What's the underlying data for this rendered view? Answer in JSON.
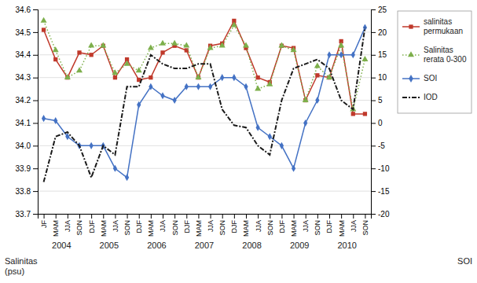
{
  "chart_data": {
    "type": "line",
    "categories": [
      "JF",
      "MAM",
      "JJA",
      "SON",
      "DJF",
      "MAM",
      "JJA",
      "SON",
      "DJF",
      "MAM",
      "JJA",
      "SON",
      "DJF",
      "MAM",
      "JJA",
      "SON",
      "DJF",
      "MAM",
      "JJA",
      "SON",
      "DJF",
      "MAM",
      "JJA",
      "SON",
      "DJF",
      "MAM",
      "JJA",
      "SON"
    ],
    "series": [
      {
        "name": "salinitas\npermukaan",
        "color": "#c0392b",
        "marker": "square",
        "line_style": "solid",
        "values": [
          34.51,
          34.38,
          34.3,
          34.41,
          34.4,
          34.44,
          34.3,
          34.38,
          34.29,
          34.3,
          34.41,
          34.44,
          34.42,
          34.3,
          34.44,
          34.45,
          34.55,
          34.43,
          34.3,
          34.28,
          34.44,
          34.43,
          34.2,
          34.31,
          34.3,
          34.46,
          34.14,
          34.14
        ]
      },
      {
        "name": "Salinitas\nrerata 0-300",
        "color": "#7daf4b",
        "marker": "triangle",
        "line_style": "dotted",
        "values": [
          34.55,
          34.42,
          34.3,
          34.33,
          34.44,
          34.44,
          34.32,
          34.36,
          34.33,
          34.43,
          34.45,
          34.45,
          34.44,
          34.3,
          34.43,
          34.44,
          34.53,
          34.44,
          34.25,
          34.27,
          34.44,
          34.42,
          34.2,
          34.35,
          34.3,
          34.44,
          34.16,
          34.38
        ]
      },
      {
        "name": "SOI",
        "color": "#4472c4",
        "marker": "diamond",
        "line_style": "solid",
        "axis": "y2",
        "values": [
          1.0,
          0.5,
          -3.0,
          -5.0,
          -5.0,
          -5.0,
          -10.0,
          -12.0,
          4.0,
          8.0,
          6.0,
          5.0,
          8.0,
          8.0,
          8.0,
          10.0,
          10.0,
          8.0,
          -1.0,
          -3.0,
          -5.0,
          -10.0,
          0.0,
          5.0,
          15.0,
          15.0,
          15.0,
          21.0
        ]
      },
      {
        "name": "IOD",
        "color": "#1a1a1a",
        "line_style": "dashdot",
        "axis": "y2",
        "values": [
          -13.0,
          -3.0,
          -2.0,
          -5.0,
          -12.0,
          -5.0,
          -7.0,
          8.0,
          8.0,
          15.0,
          13.0,
          12.0,
          12.0,
          13.0,
          13.0,
          3.0,
          -0.5,
          -1.0,
          -5.0,
          -7.0,
          5.0,
          12.0,
          13.0,
          14.0,
          12.0,
          5.0,
          3.0,
          21.0
        ]
      }
    ],
    "ylim": [
      33.7,
      34.6
    ],
    "yticks": [
      33.7,
      33.8,
      33.9,
      {
        "value": 34.0,
        "label": "34.0"
      },
      34.1,
      34.2,
      34.3,
      34.4,
      34.5,
      34.6
    ],
    "y2lim": [
      -20,
      25
    ],
    "y2ticks": [
      -20,
      -15,
      -10,
      -5,
      0,
      5,
      10,
      15,
      20,
      25
    ],
    "ylabel": "Salinitas\n(psu)",
    "y2label": "SOI",
    "annotations": [
      {
        "text": "2004",
        "x": 1.5
      },
      {
        "text": "2005",
        "x": 5.5
      },
      {
        "text": "2006",
        "x": 9.5
      },
      {
        "text": "2007",
        "x": 13.5
      },
      {
        "text": "2008",
        "x": 17.5
      },
      {
        "text": "2009",
        "x": 21.5
      },
      {
        "text": "2010",
        "x": 25.5
      }
    ],
    "grid": true,
    "legend": "upper right"
  }
}
